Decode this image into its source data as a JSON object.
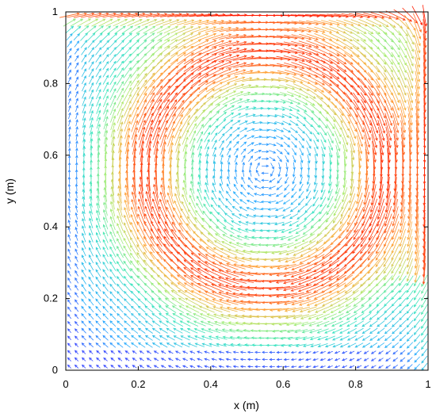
{
  "chart_data": {
    "type": "quiver",
    "title": "",
    "xlabel": "x (m)",
    "ylabel": "y (m)",
    "xlim": [
      0,
      1
    ],
    "ylim": [
      0,
      1
    ],
    "x_ticks": [
      0,
      0.2,
      0.4,
      0.6,
      0.8,
      1
    ],
    "y_ticks": [
      0,
      0.2,
      0.4,
      0.6,
      0.8,
      1
    ],
    "x_tick_labels": [
      "0",
      "0.2",
      "0.4",
      "0.6",
      "0.8",
      "1"
    ],
    "y_tick_labels": [
      "0",
      "0.2",
      "0.4",
      "0.6",
      "0.8",
      "1"
    ],
    "grid": false,
    "legend": "none",
    "field": {
      "description_of_flow": "lid-driven cavity: clockwise primary vortex",
      "vortex_center": [
        0.55,
        0.56
      ],
      "grid_spacing": 0.02,
      "color_low": "#3a2bff",
      "color_high": "#ff1a00",
      "colormap": "rainbow"
    }
  }
}
